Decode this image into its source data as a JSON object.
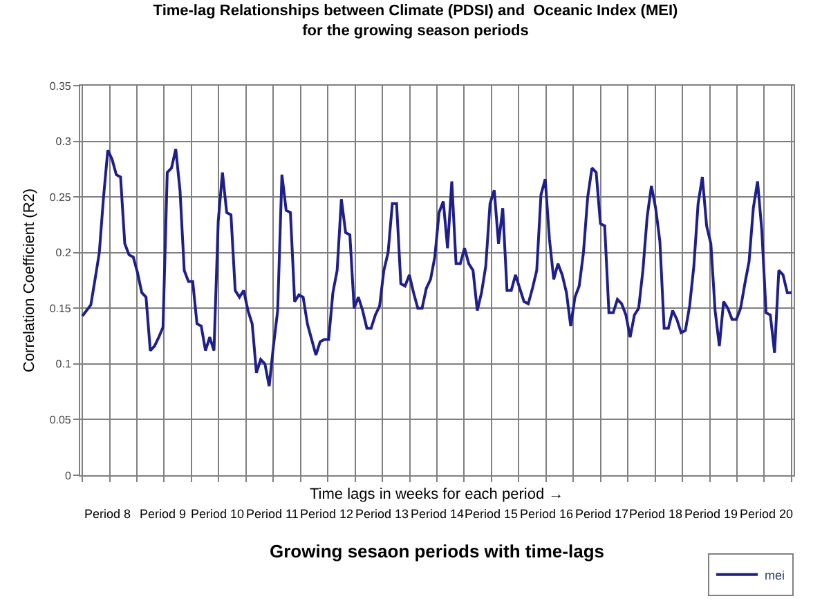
{
  "chart_data": {
    "type": "line",
    "title": "Time-lag Relationships between Climate (PDSI) and  Oceanic Index (MEI)\nfor the growing season periods",
    "xlabel": "Growing sesaon periods with time-lags",
    "ylabel": "Correlation Coefficient (R2)",
    "annotations": [
      "Time lags in weeks for each period →",
      "Period 8",
      "Period 9",
      "Period 10",
      "Period 11",
      "Period 12",
      "Period 13",
      "Period 14",
      "Period 15",
      "Period 16",
      "Period 17",
      "Period 18",
      "Period 19",
      "Period 20"
    ],
    "categories": [
      null,
      null,
      null,
      null,
      null,
      null,
      null,
      null,
      null,
      null,
      null,
      null,
      null,
      null,
      null,
      null,
      null,
      null,
      null,
      null,
      null,
      null,
      null,
      null,
      null,
      null,
      null,
      null,
      null,
      null,
      null,
      null,
      null,
      null,
      null,
      null,
      null,
      null,
      null,
      null,
      null,
      null,
      null,
      null,
      null,
      null,
      null,
      null,
      null,
      null,
      null,
      null,
      null,
      null,
      null,
      null,
      null,
      null,
      null,
      null,
      null,
      null,
      null,
      null,
      null,
      null,
      null,
      null,
      null,
      null,
      null,
      null,
      null,
      null,
      null,
      null,
      null,
      null,
      null,
      null,
      null,
      null,
      null,
      null,
      null,
      null,
      null,
      null,
      null,
      null,
      null,
      null,
      null,
      null,
      null,
      null,
      null,
      null,
      null,
      null,
      null,
      null,
      null,
      null,
      null,
      null,
      null,
      null,
      null,
      null,
      null,
      null,
      null,
      null,
      null,
      null,
      null,
      null,
      null,
      null,
      null,
      null,
      null,
      null,
      null,
      null,
      null,
      null,
      null,
      null,
      null,
      null,
      null,
      null,
      null,
      null,
      null,
      null,
      null,
      null,
      null,
      null,
      null,
      null,
      null,
      null,
      null,
      null,
      null,
      null,
      null,
      null,
      null,
      null,
      null,
      null,
      null,
      null,
      null,
      null,
      null,
      null,
      null,
      null,
      null,
      null,
      null,
      null
    ],
    "ylim": [
      0,
      0.35
    ],
    "yticks": [
      0,
      0.05,
      0.1,
      0.15,
      0.2,
      0.25,
      0.3,
      0.35
    ],
    "grid": true,
    "legend": "bottom right",
    "marker": "none",
    "line_style": "solid",
    "series": [
      {
        "name": "mei",
        "color": "#1f1f8c",
        "values": [
          0.143,
          0.148,
          0.153,
          0.176,
          0.2,
          0.25,
          0.292,
          0.284,
          0.27,
          0.268,
          0.208,
          0.198,
          0.196,
          0.182,
          0.164,
          0.16,
          0.112,
          0.116,
          0.124,
          0.133,
          0.272,
          0.276,
          0.293,
          0.256,
          0.184,
          0.174,
          0.174,
          0.136,
          0.134,
          0.112,
          0.124,
          0.112,
          0.228,
          0.272,
          0.236,
          0.234,
          0.166,
          0.16,
          0.166,
          0.148,
          0.136,
          0.092,
          0.104,
          0.1,
          0.08,
          0.116,
          0.148,
          0.27,
          0.238,
          0.236,
          0.156,
          0.162,
          0.16,
          0.136,
          0.122,
          0.108,
          0.12,
          0.122,
          0.122,
          0.164,
          0.184,
          0.248,
          0.218,
          0.216,
          0.15,
          0.16,
          0.148,
          0.132,
          0.132,
          0.144,
          0.152,
          0.184,
          0.2,
          0.244,
          0.244,
          0.172,
          0.17,
          0.18,
          0.164,
          0.15,
          0.15,
          0.168,
          0.176,
          0.196,
          0.236,
          0.246,
          0.204,
          0.264,
          0.19,
          0.19,
          0.204,
          0.19,
          0.184,
          0.148,
          0.164,
          0.188,
          0.244,
          0.256,
          0.208,
          0.24,
          0.166,
          0.166,
          0.18,
          0.168,
          0.156,
          0.154,
          0.168,
          0.184,
          0.252,
          0.266,
          0.212,
          0.176,
          0.19,
          0.18,
          0.164,
          0.134,
          0.16,
          0.17,
          0.2,
          0.25,
          0.276,
          0.272,
          0.226,
          0.224,
          0.146,
          0.146,
          0.158,
          0.154,
          0.144,
          0.124,
          0.144,
          0.15,
          0.184,
          0.232,
          0.26,
          0.24,
          0.21,
          0.132,
          0.132,
          0.148,
          0.14,
          0.128,
          0.13,
          0.152,
          0.188,
          0.244,
          0.268,
          0.224,
          0.208,
          0.148,
          0.116,
          0.156,
          0.15,
          0.14,
          0.14,
          0.15,
          0.172,
          0.192,
          0.24,
          0.264,
          0.22,
          0.146,
          0.144,
          0.11,
          0.184,
          0.18,
          0.164,
          0.164
        ]
      }
    ]
  }
}
